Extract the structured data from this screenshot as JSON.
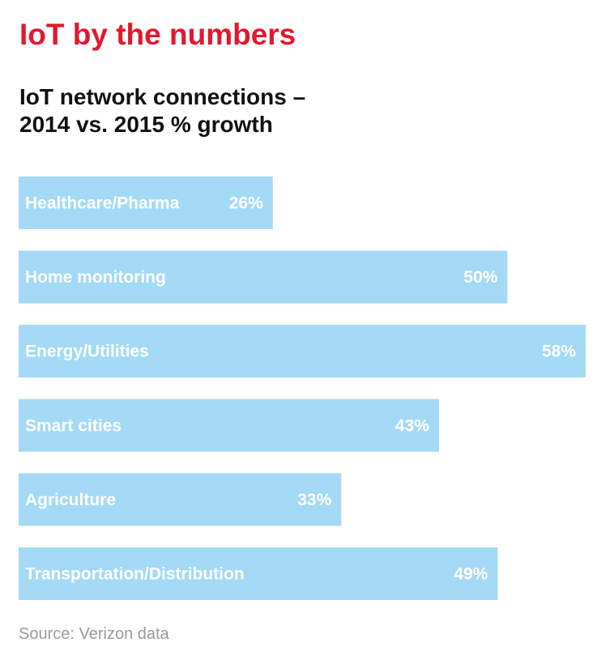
{
  "header": {
    "title": "IoT by the numbers",
    "subtitle_line1": "IoT network connections –",
    "subtitle_line2": "2014 vs. 2015 % growth"
  },
  "footer": {
    "source": "Source: Verizon data"
  },
  "colors": {
    "title": "#e3182d",
    "bar": "#a3d9f5",
    "bar_text": "#ffffff",
    "source": "#9a9a9a"
  },
  "chart_data": {
    "type": "bar",
    "orientation": "horizontal",
    "title": "IoT network connections – 2014 vs. 2015 % growth",
    "xlabel": "",
    "ylabel": "",
    "unit": "%",
    "categories": [
      "Healthcare/Pharma",
      "Home monitoring",
      "Energy/Utilities",
      "Smart cities",
      "Agriculture",
      "Transportation/Distribution"
    ],
    "values": [
      26,
      50,
      58,
      43,
      33,
      49
    ],
    "value_labels": [
      "26%",
      "50%",
      "58%",
      "43%",
      "33%",
      "49%"
    ],
    "xlim": [
      0,
      58
    ],
    "grid": false,
    "legend": "none"
  }
}
